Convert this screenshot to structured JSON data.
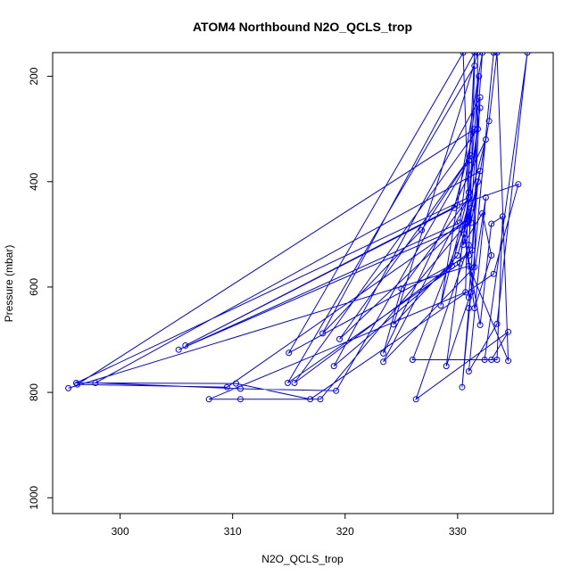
{
  "chart_data": {
    "type": "line",
    "title": "ATOM4 Northbound N2O_QCLS_trop",
    "xlabel": "N2O_QCLS_trop",
    "ylabel": "Pressure (mbar)",
    "xlim": [
      294,
      338.5
    ],
    "ylim": [
      1030,
      155
    ],
    "y_axis_inverted": true,
    "x_ticks": [
      300,
      310,
      320,
      330
    ],
    "y_ticks": [
      200,
      400,
      600,
      800,
      1000
    ],
    "series_color": "#0000ff",
    "marker": "open-circle",
    "series": [
      {
        "values": [
          {
            "x": 295.4,
            "y": 792
          },
          {
            "x": 331.0,
            "y": 560
          },
          {
            "x": 334.5,
            "y": 740
          },
          {
            "x": 333.5,
            "y": 155
          },
          {
            "x": 332.8,
            "y": 285
          },
          {
            "x": 331.2,
            "y": 478
          },
          {
            "x": 305.2,
            "y": 719
          },
          {
            "x": 330.2,
            "y": 478
          },
          {
            "x": 331.9,
            "y": 200
          },
          {
            "x": 331.0,
            "y": 430
          },
          {
            "x": 296.1,
            "y": 782
          },
          {
            "x": 310.3,
            "y": 783
          },
          {
            "x": 316.9,
            "y": 813
          },
          {
            "x": 333.2,
            "y": 575
          },
          {
            "x": 335.4,
            "y": 405
          },
          {
            "x": 330.0,
            "y": 445
          },
          {
            "x": 305.8,
            "y": 711
          },
          {
            "x": 329.7,
            "y": 450
          },
          {
            "x": 331.5,
            "y": 300
          },
          {
            "x": 296.2,
            "y": 785
          },
          {
            "x": 309.5,
            "y": 790
          },
          {
            "x": 331.0,
            "y": 470
          },
          {
            "x": 332.0,
            "y": 380
          },
          {
            "x": 297.8,
            "y": 782
          },
          {
            "x": 310.7,
            "y": 793
          },
          {
            "x": 319.2,
            "y": 797
          },
          {
            "x": 331.0,
            "y": 360
          },
          {
            "x": 330.7,
            "y": 610
          },
          {
            "x": 307.9,
            "y": 813
          },
          {
            "x": 310.7,
            "y": 813
          },
          {
            "x": 317.8,
            "y": 813
          },
          {
            "x": 330.8,
            "y": 480
          },
          {
            "x": 331.5,
            "y": 155
          },
          {
            "x": 318.0,
            "y": 688
          },
          {
            "x": 326.8,
            "y": 492
          },
          {
            "x": 331.2,
            "y": 350
          },
          {
            "x": 319.5,
            "y": 699
          },
          {
            "x": 331.0,
            "y": 467
          },
          {
            "x": 330.5,
            "y": 155
          },
          {
            "x": 315.0,
            "y": 725
          },
          {
            "x": 331.0,
            "y": 540
          },
          {
            "x": 331.5,
            "y": 180
          },
          {
            "x": 314.9,
            "y": 782
          },
          {
            "x": 330.2,
            "y": 555
          },
          {
            "x": 331.8,
            "y": 300
          },
          {
            "x": 315.5,
            "y": 782
          },
          {
            "x": 331.3,
            "y": 530
          },
          {
            "x": 332.0,
            "y": 240
          },
          {
            "x": 319.0,
            "y": 750
          },
          {
            "x": 329.5,
            "y": 560
          },
          {
            "x": 332.5,
            "y": 320
          },
          {
            "x": 323.4,
            "y": 726
          },
          {
            "x": 325.0,
            "y": 603
          },
          {
            "x": 331.0,
            "y": 430
          },
          {
            "x": 323.4,
            "y": 742
          },
          {
            "x": 331.5,
            "y": 562
          },
          {
            "x": 331.8,
            "y": 155
          },
          {
            "x": 324.3,
            "y": 671
          },
          {
            "x": 330.0,
            "y": 540
          },
          {
            "x": 331.2,
            "y": 450
          },
          {
            "x": 326.0,
            "y": 738
          },
          {
            "x": 333.0,
            "y": 738
          },
          {
            "x": 334.5,
            "y": 685
          },
          {
            "x": 326.3,
            "y": 813
          },
          {
            "x": 331.0,
            "y": 520
          },
          {
            "x": 332.2,
            "y": 155
          },
          {
            "x": 328.5,
            "y": 635
          },
          {
            "x": 331.0,
            "y": 420
          },
          {
            "x": 332.0,
            "y": 260
          },
          {
            "x": 329.0,
            "y": 750
          },
          {
            "x": 331.2,
            "y": 610
          },
          {
            "x": 333.2,
            "y": 155
          },
          {
            "x": 330.4,
            "y": 790
          },
          {
            "x": 331.0,
            "y": 640
          },
          {
            "x": 332.5,
            "y": 430
          },
          {
            "x": 331.0,
            "y": 760
          },
          {
            "x": 333.5,
            "y": 670
          },
          {
            "x": 336.2,
            "y": 155
          },
          {
            "x": 332.4,
            "y": 738
          },
          {
            "x": 333.5,
            "y": 738
          },
          {
            "x": 334.0,
            "y": 466
          },
          {
            "x": 333.0,
            "y": 480
          },
          {
            "x": 332.0,
            "y": 672
          },
          {
            "x": 330.6,
            "y": 500
          },
          {
            "x": 331.5,
            "y": 640
          },
          {
            "x": 333.0,
            "y": 540
          },
          {
            "x": 332.2,
            "y": 460
          },
          {
            "x": 330.5,
            "y": 520
          },
          {
            "x": 331.8,
            "y": 400
          },
          {
            "x": 331.0,
            "y": 620
          }
        ]
      }
    ]
  }
}
